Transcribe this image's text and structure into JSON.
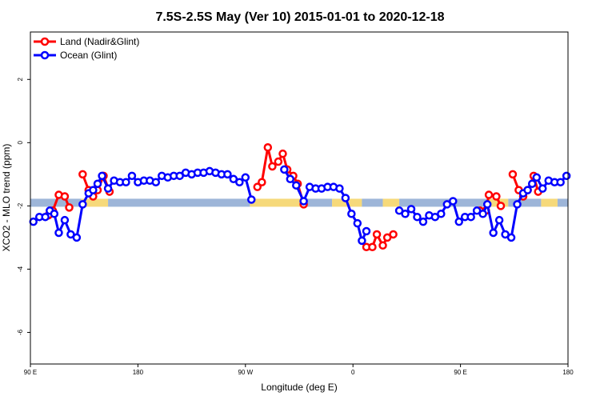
{
  "colors": {
    "land": "#ff0000",
    "ocean": "#0000ff",
    "band_blue": "#9db5d8",
    "band_yellow": "#f6d97a"
  },
  "chart_data": {
    "type": "line",
    "title": "7.5S-2.5S May (Ver 10)   2015-01-01 to 2020-12-18",
    "xlabel": "Longitude (deg E)",
    "ylabel": "XCO2 - MLO trend (ppm)",
    "xlim": [
      0,
      360
    ],
    "ylim": [
      -7,
      3.5
    ],
    "xticks": [
      {
        "x": 0,
        "label": "90 E"
      },
      {
        "x": 72,
        "label": "180"
      },
      {
        "x": 144,
        "label": "90 W"
      },
      {
        "x": 216,
        "label": "0"
      },
      {
        "x": 288,
        "label": "90 E"
      },
      {
        "x": 360,
        "label": "180"
      }
    ],
    "yticks": [
      {
        "y": 2,
        "label": "2"
      },
      {
        "y": 0,
        "label": "0"
      },
      {
        "y": -2,
        "label": "-2"
      },
      {
        "y": -4,
        "label": "-4"
      },
      {
        "y": -6,
        "label": "-6"
      }
    ],
    "grid": false,
    "legend_position": "top-left",
    "band": {
      "y": -1.9,
      "segments": [
        {
          "x0": 0,
          "x1": 34,
          "kind": "blue"
        },
        {
          "x0": 34,
          "x1": 52,
          "kind": "yellow"
        },
        {
          "x0": 52,
          "x1": 147,
          "kind": "blue"
        },
        {
          "x0": 147,
          "x1": 182,
          "kind": "yellow"
        },
        {
          "x0": 182,
          "x1": 202,
          "kind": "blue"
        },
        {
          "x0": 202,
          "x1": 222,
          "kind": "yellow"
        },
        {
          "x0": 222,
          "x1": 236,
          "kind": "blue"
        },
        {
          "x0": 236,
          "x1": 247,
          "kind": "yellow"
        },
        {
          "x0": 247,
          "x1": 306,
          "kind": "blue"
        },
        {
          "x0": 306,
          "x1": 320,
          "kind": "yellow"
        },
        {
          "x0": 320,
          "x1": 342,
          "kind": "blue"
        },
        {
          "x0": 342,
          "x1": 353,
          "kind": "yellow"
        },
        {
          "x0": 353,
          "x1": 360,
          "kind": "blue"
        }
      ]
    },
    "series": [
      {
        "name": "Land (Nadir&Glint)",
        "color": "#ff0000",
        "segments": [
          [
            [
              12,
              -2.3
            ],
            [
              15,
              -2.15
            ],
            [
              19,
              -1.65
            ],
            [
              23,
              -1.7
            ],
            [
              26,
              -2.05
            ]
          ],
          [
            [
              35,
              -1.0
            ],
            [
              39,
              -1.5
            ],
            [
              42,
              -1.7
            ],
            [
              45,
              -1.5
            ],
            [
              49,
              -1.05
            ],
            [
              53,
              -1.55
            ]
          ],
          [
            [
              152,
              -1.4
            ],
            [
              155,
              -1.25
            ],
            [
              159,
              -0.15
            ],
            [
              162,
              -0.75
            ],
            [
              166,
              -0.6
            ],
            [
              169,
              -0.35
            ],
            [
              172,
              -0.85
            ],
            [
              176,
              -1.05
            ],
            [
              179,
              -1.3
            ],
            [
              183,
              -1.95
            ]
          ],
          [
            [
              225,
              -3.3
            ],
            [
              229,
              -3.3
            ],
            [
              232,
              -2.9
            ],
            [
              236,
              -3.25
            ],
            [
              239,
              -3.0
            ],
            [
              243,
              -2.9
            ]
          ],
          [
            [
              301,
              -2.15
            ],
            [
              305,
              -2.15
            ],
            [
              307,
              -1.65
            ],
            [
              312,
              -1.7
            ],
            [
              315,
              -2.0
            ]
          ],
          [
            [
              323,
              -1.0
            ],
            [
              327,
              -1.5
            ],
            [
              330,
              -1.7
            ],
            [
              333,
              -1.5
            ],
            [
              337,
              -1.05
            ],
            [
              340,
              -1.55
            ]
          ]
        ]
      },
      {
        "name": "Ocean (Glint)",
        "color": "#0000ff",
        "segments": [
          [
            [
              2,
              -2.5
            ],
            [
              6,
              -2.35
            ],
            [
              10,
              -2.35
            ],
            [
              13,
              -2.15
            ],
            [
              16,
              -2.25
            ],
            [
              19,
              -2.85
            ],
            [
              23,
              -2.45
            ],
            [
              27,
              -2.9
            ],
            [
              31,
              -3.0
            ],
            [
              35,
              -1.95
            ],
            [
              39,
              -1.6
            ],
            [
              42,
              -1.5
            ],
            [
              45,
              -1.3
            ],
            [
              48,
              -1.05
            ],
            [
              52,
              -1.45
            ],
            [
              56,
              -1.2
            ],
            [
              60,
              -1.25
            ],
            [
              64,
              -1.25
            ],
            [
              68,
              -1.05
            ],
            [
              72,
              -1.25
            ],
            [
              76,
              -1.2
            ],
            [
              80,
              -1.2
            ],
            [
              84,
              -1.25
            ],
            [
              88,
              -1.05
            ],
            [
              92,
              -1.1
            ],
            [
              96,
              -1.05
            ],
            [
              100,
              -1.05
            ],
            [
              104,
              -0.95
            ],
            [
              108,
              -1.0
            ],
            [
              112,
              -0.95
            ],
            [
              116,
              -0.95
            ],
            [
              120,
              -0.9
            ],
            [
              124,
              -0.95
            ],
            [
              128,
              -1.0
            ],
            [
              132,
              -1.0
            ],
            [
              136,
              -1.15
            ],
            [
              140,
              -1.25
            ],
            [
              144,
              -1.1
            ],
            [
              148,
              -1.8
            ]
          ],
          [
            [
              170,
              -0.85
            ],
            [
              174,
              -1.15
            ],
            [
              178,
              -1.35
            ],
            [
              183,
              -1.85
            ],
            [
              187,
              -1.4
            ],
            [
              191,
              -1.45
            ],
            [
              195,
              -1.45
            ],
            [
              199,
              -1.4
            ],
            [
              203,
              -1.4
            ],
            [
              207,
              -1.45
            ],
            [
              211,
              -1.75
            ],
            [
              215,
              -2.25
            ],
            [
              219,
              -2.55
            ],
            [
              222,
              -3.1
            ],
            [
              225,
              -2.8
            ]
          ],
          [
            [
              247,
              -2.15
            ],
            [
              251,
              -2.25
            ],
            [
              255,
              -2.1
            ],
            [
              259,
              -2.35
            ],
            [
              263,
              -2.5
            ],
            [
              267,
              -2.3
            ],
            [
              271,
              -2.35
            ],
            [
              275,
              -2.25
            ],
            [
              279,
              -1.95
            ],
            [
              283,
              -1.85
            ],
            [
              287,
              -2.5
            ],
            [
              291,
              -2.35
            ],
            [
              295,
              -2.35
            ],
            [
              299,
              -2.15
            ],
            [
              303,
              -2.25
            ],
            [
              306,
              -1.95
            ],
            [
              310,
              -2.85
            ],
            [
              314,
              -2.45
            ],
            [
              318,
              -2.9
            ],
            [
              322,
              -3.0
            ],
            [
              326,
              -1.95
            ],
            [
              330,
              -1.6
            ],
            [
              333,
              -1.5
            ],
            [
              336,
              -1.3
            ],
            [
              339,
              -1.1
            ],
            [
              343,
              -1.45
            ],
            [
              347,
              -1.2
            ],
            [
              351,
              -1.25
            ],
            [
              355,
              -1.25
            ],
            [
              359,
              -1.05
            ]
          ]
        ]
      }
    ]
  }
}
